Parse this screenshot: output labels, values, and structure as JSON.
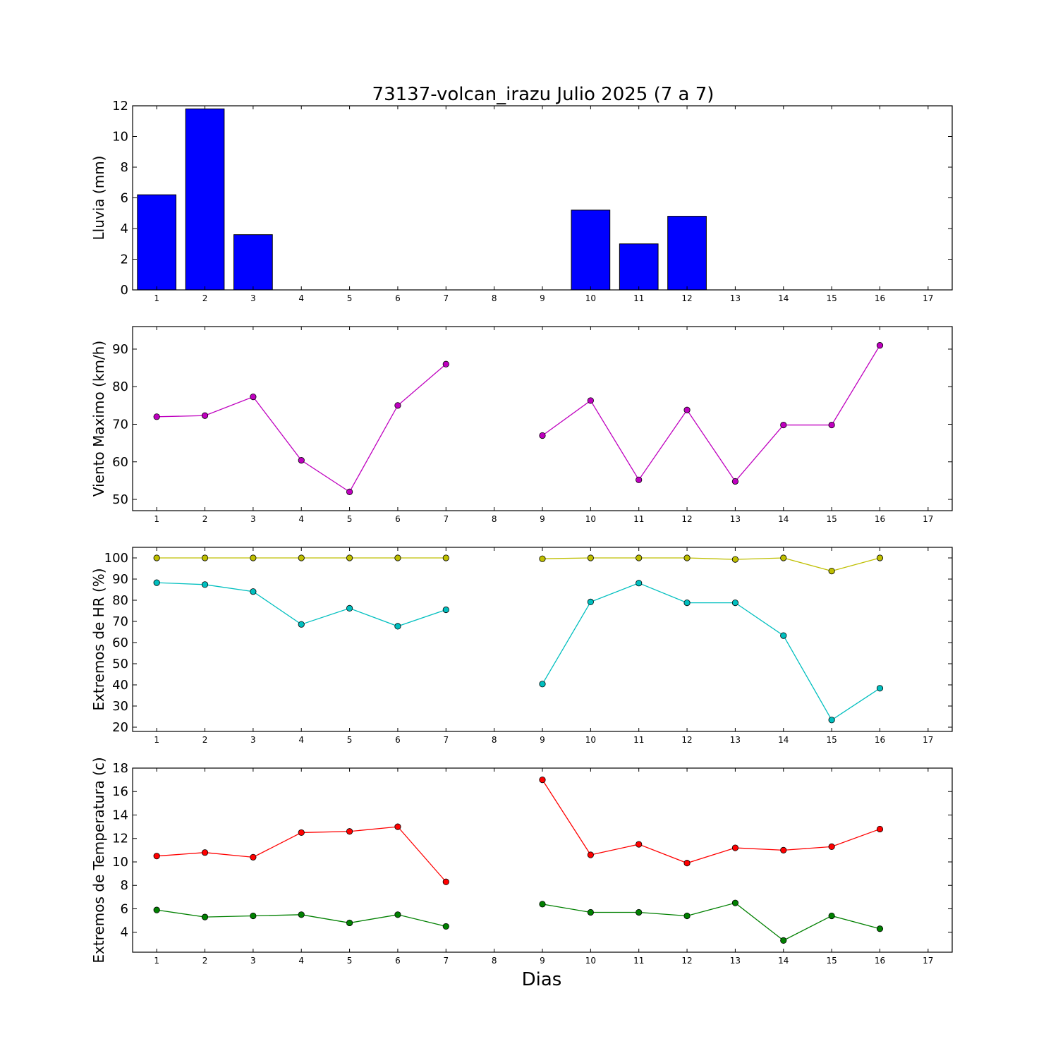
{
  "title": "73137-volcan_irazu Julio 2025  (7 a 7)",
  "xlabel": "Dias",
  "chart_data": [
    {
      "type": "bar",
      "ylabel": "Lluvia (mm)",
      "xlim": [
        0.5,
        17.5
      ],
      "ylim": [
        0,
        12
      ],
      "yticks": [
        0,
        2,
        4,
        6,
        8,
        10,
        12
      ],
      "xticks": [
        1,
        2,
        3,
        4,
        5,
        6,
        7,
        8,
        9,
        10,
        11,
        12,
        13,
        14,
        15,
        16,
        17
      ],
      "categories": [
        1,
        2,
        3,
        4,
        5,
        6,
        7,
        8,
        9,
        10,
        11,
        12,
        13,
        14,
        15,
        16
      ],
      "series": [
        {
          "color": "#0000ff",
          "values": [
            6.2,
            11.8,
            3.6,
            0,
            0,
            0,
            0,
            null,
            0,
            5.2,
            3.0,
            4.8,
            0,
            0,
            0,
            0
          ]
        }
      ]
    },
    {
      "type": "line",
      "ylabel": "Viento Maximo (km/h)",
      "xlim": [
        0.5,
        17.5
      ],
      "ylim": [
        47,
        96
      ],
      "yticks": [
        50,
        60,
        70,
        80,
        90
      ],
      "xticks": [
        1,
        2,
        3,
        4,
        5,
        6,
        7,
        8,
        9,
        10,
        11,
        12,
        13,
        14,
        15,
        16,
        17
      ],
      "x": [
        1,
        2,
        3,
        4,
        5,
        6,
        7,
        8,
        9,
        10,
        11,
        12,
        13,
        14,
        15,
        16
      ],
      "series": [
        {
          "color": "#bf00bf",
          "values": [
            72.0,
            72.3,
            77.3,
            60.4,
            52.0,
            75.0,
            86.0,
            null,
            67.0,
            76.3,
            55.2,
            73.8,
            54.8,
            69.8,
            69.8,
            91.0
          ]
        }
      ]
    },
    {
      "type": "line",
      "ylabel": "Extremos de HR (%)",
      "xlim": [
        0.5,
        17.5
      ],
      "ylim": [
        18,
        105
      ],
      "yticks": [
        20,
        30,
        40,
        50,
        60,
        70,
        80,
        90,
        100
      ],
      "xticks": [
        1,
        2,
        3,
        4,
        5,
        6,
        7,
        8,
        9,
        10,
        11,
        12,
        13,
        14,
        15,
        16,
        17
      ],
      "x": [
        1,
        2,
        3,
        4,
        5,
        6,
        7,
        8,
        9,
        10,
        11,
        12,
        13,
        14,
        15,
        16
      ],
      "series": [
        {
          "color": "#bfbf00",
          "values": [
            100,
            100,
            100,
            100,
            100,
            100,
            100,
            null,
            99.6,
            100,
            100,
            100,
            99.3,
            100,
            93.8,
            100
          ]
        },
        {
          "color": "#00bfbf",
          "values": [
            88.3,
            87.4,
            84.1,
            68.6,
            76.2,
            67.7,
            75.5,
            null,
            40.4,
            79.2,
            88.1,
            78.8,
            78.8,
            63.3,
            23.4,
            38.4
          ]
        }
      ]
    },
    {
      "type": "line",
      "ylabel": "Extremos de Temperatura (c)",
      "xlim": [
        0.5,
        17.5
      ],
      "ylim": [
        2.3,
        18.0
      ],
      "yticks": [
        4,
        6,
        8,
        10,
        12,
        14,
        16,
        18
      ],
      "xticks": [
        1,
        2,
        3,
        4,
        5,
        6,
        7,
        8,
        9,
        10,
        11,
        12,
        13,
        14,
        15,
        16,
        17
      ],
      "x": [
        1,
        2,
        3,
        4,
        5,
        6,
        7,
        8,
        9,
        10,
        11,
        12,
        13,
        14,
        15,
        16
      ],
      "series": [
        {
          "color": "#ff0000",
          "values": [
            10.5,
            10.8,
            10.4,
            12.5,
            12.6,
            13.0,
            8.3,
            null,
            17.0,
            10.6,
            11.5,
            9.9,
            11.2,
            11.0,
            11.3,
            12.8
          ]
        },
        {
          "color": "#008000",
          "values": [
            5.9,
            5.3,
            5.4,
            5.5,
            4.8,
            5.5,
            4.5,
            null,
            6.4,
            5.7,
            5.7,
            5.4,
            6.5,
            3.3,
            5.4,
            4.3
          ]
        }
      ]
    }
  ]
}
